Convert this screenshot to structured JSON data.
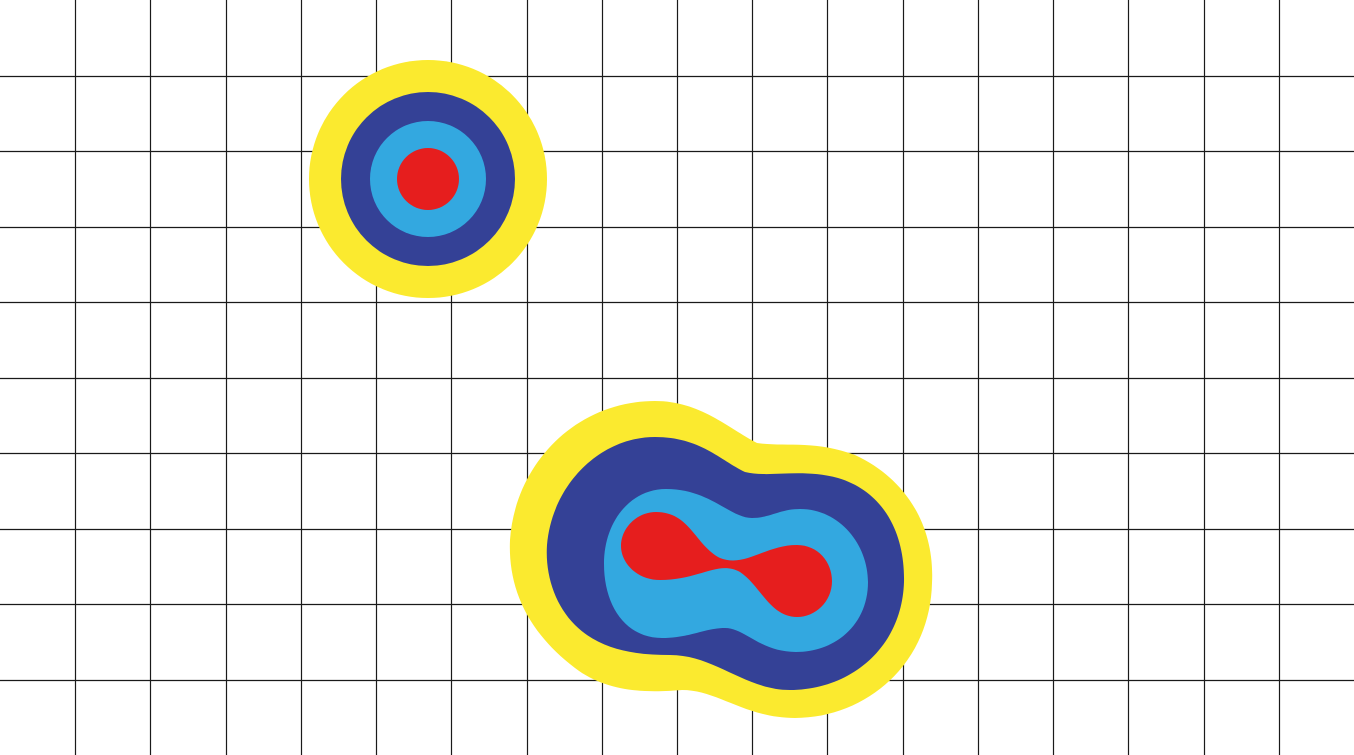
{
  "colors": {
    "background": "#ffffff",
    "grid": "#1a1a1a",
    "outer_ring": "#fbea2f",
    "second_ring": "#344196",
    "third_ring": "#33a8e0",
    "core": "#e61e1e"
  },
  "grid": {
    "columns": 18,
    "rows": 10
  },
  "blobs": [
    {
      "name": "single-source-blob",
      "layers": [
        "outer_ring",
        "second_ring",
        "third_ring",
        "core"
      ]
    },
    {
      "name": "double-source-blob",
      "layers": [
        "outer_ring",
        "second_ring",
        "third_ring",
        "core"
      ]
    }
  ]
}
